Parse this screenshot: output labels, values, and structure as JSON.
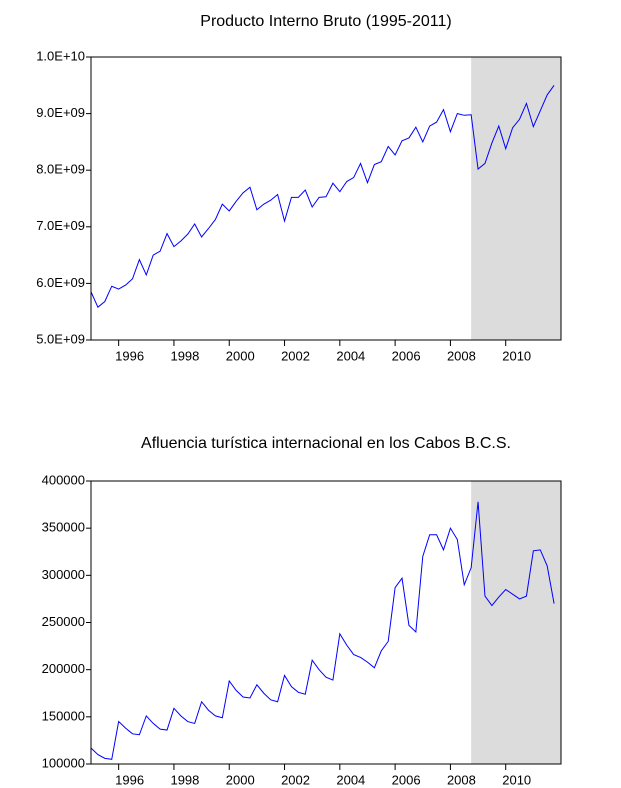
{
  "chart_data": [
    {
      "type": "line",
      "title": "Producto Interno Bruto (1995-2011)",
      "color": "#0000ff",
      "x": [
        1995,
        1995.25,
        1995.5,
        1995.75,
        1996,
        1996.25,
        1996.5,
        1996.75,
        1997,
        1997.25,
        1997.5,
        1997.75,
        1998,
        1998.25,
        1998.5,
        1998.75,
        1999,
        1999.25,
        1999.5,
        1999.75,
        2000,
        2000.25,
        2000.5,
        2000.75,
        2001,
        2001.25,
        2001.5,
        2001.75,
        2002,
        2002.25,
        2002.5,
        2002.75,
        2003,
        2003.25,
        2003.5,
        2003.75,
        2004,
        2004.25,
        2004.5,
        2004.75,
        2005,
        2005.25,
        2005.5,
        2005.75,
        2006,
        2006.25,
        2006.5,
        2006.75,
        2007,
        2007.25,
        2007.5,
        2007.75,
        2008,
        2008.25,
        2008.5,
        2008.75,
        2009,
        2009.25,
        2009.5,
        2009.75,
        2010,
        2010.25,
        2010.5,
        2010.75,
        2011,
        2011.25,
        2011.5,
        2011.75
      ],
      "values": [
        5850000000,
        5580000000,
        5680000000,
        5950000000,
        5900000000,
        5970000000,
        6080000000,
        6420000000,
        6150000000,
        6500000000,
        6570000000,
        6880000000,
        6650000000,
        6750000000,
        6870000000,
        7050000000,
        6820000000,
        6970000000,
        7130000000,
        7400000000,
        7280000000,
        7450000000,
        7600000000,
        7700000000,
        7300000000,
        7400000000,
        7470000000,
        7570000000,
        7100000000,
        7520000000,
        7520000000,
        7650000000,
        7350000000,
        7520000000,
        7530000000,
        7770000000,
        7620000000,
        7800000000,
        7870000000,
        8120000000,
        7780000000,
        8100000000,
        8150000000,
        8420000000,
        8270000000,
        8520000000,
        8570000000,
        8760000000,
        8500000000,
        8780000000,
        8850000000,
        9070000000,
        8680000000,
        9000000000,
        8970000000,
        8980000000,
        8020000000,
        8120000000,
        8480000000,
        8780000000,
        8380000000,
        8750000000,
        8900000000,
        9180000000,
        8770000000,
        9050000000,
        9330000000,
        9500000000
      ],
      "xlim": [
        1995,
        2012
      ],
      "xticks": [
        1996,
        1998,
        2000,
        2002,
        2004,
        2006,
        2008,
        2010
      ],
      "ylim": [
        5000000000,
        10000000000
      ],
      "yticks": [
        {
          "value": 5000000000,
          "label": "5.0E+09"
        },
        {
          "value": 6000000000,
          "label": "6.0E+09"
        },
        {
          "value": 7000000000,
          "label": "7.0E+09"
        },
        {
          "value": 8000000000,
          "label": "8.0E+09"
        },
        {
          "value": 9000000000,
          "label": "9.0E+09"
        },
        {
          "value": 10000000000,
          "label": "1.0E+10"
        }
      ],
      "shade": [
        2008.75,
        2012
      ]
    },
    {
      "type": "line",
      "title": "Afluencia turística internacional en los Cabos B.C.S.",
      "color": "#0000ff",
      "x": [
        1995,
        1995.25,
        1995.5,
        1995.75,
        1996,
        1996.25,
        1996.5,
        1996.75,
        1997,
        1997.25,
        1997.5,
        1997.75,
        1998,
        1998.25,
        1998.5,
        1998.75,
        1999,
        1999.25,
        1999.5,
        1999.75,
        2000,
        2000.25,
        2000.5,
        2000.75,
        2001,
        2001.25,
        2001.5,
        2001.75,
        2002,
        2002.25,
        2002.5,
        2002.75,
        2003,
        2003.25,
        2003.5,
        2003.75,
        2004,
        2004.25,
        2004.5,
        2004.75,
        2005,
        2005.25,
        2005.5,
        2005.75,
        2006,
        2006.25,
        2006.5,
        2006.75,
        2007,
        2007.25,
        2007.5,
        2007.75,
        2008,
        2008.25,
        2008.5,
        2008.75,
        2009,
        2009.25,
        2009.5,
        2009.75,
        2010,
        2010.25,
        2010.5,
        2010.75,
        2011,
        2011.25,
        2011.5,
        2011.75
      ],
      "values": [
        117000,
        110000,
        106000,
        105000,
        145000,
        138000,
        132000,
        131000,
        151000,
        143000,
        137000,
        136000,
        159000,
        151000,
        145000,
        143000,
        166000,
        157000,
        151000,
        149000,
        188000,
        178000,
        171000,
        170000,
        184000,
        175000,
        168000,
        166000,
        194000,
        182000,
        176000,
        174000,
        210000,
        200000,
        192000,
        189000,
        238000,
        226000,
        216000,
        213000,
        208000,
        202000,
        220000,
        230000,
        287000,
        297000,
        247000,
        240000,
        320000,
        343000,
        343000,
        327000,
        350000,
        338000,
        290000,
        308000,
        378000,
        278000,
        268000,
        277000,
        285000,
        280000,
        275000,
        278000,
        326000,
        327000,
        310000,
        270000
      ],
      "xlim": [
        1995,
        2012
      ],
      "xticks": [
        1996,
        1998,
        2000,
        2002,
        2004,
        2006,
        2008,
        2010
      ],
      "ylim": [
        100000,
        400000
      ],
      "yticks": [
        100000,
        150000,
        200000,
        250000,
        300000,
        350000,
        400000
      ],
      "shade": [
        2008.75,
        2012
      ]
    }
  ]
}
